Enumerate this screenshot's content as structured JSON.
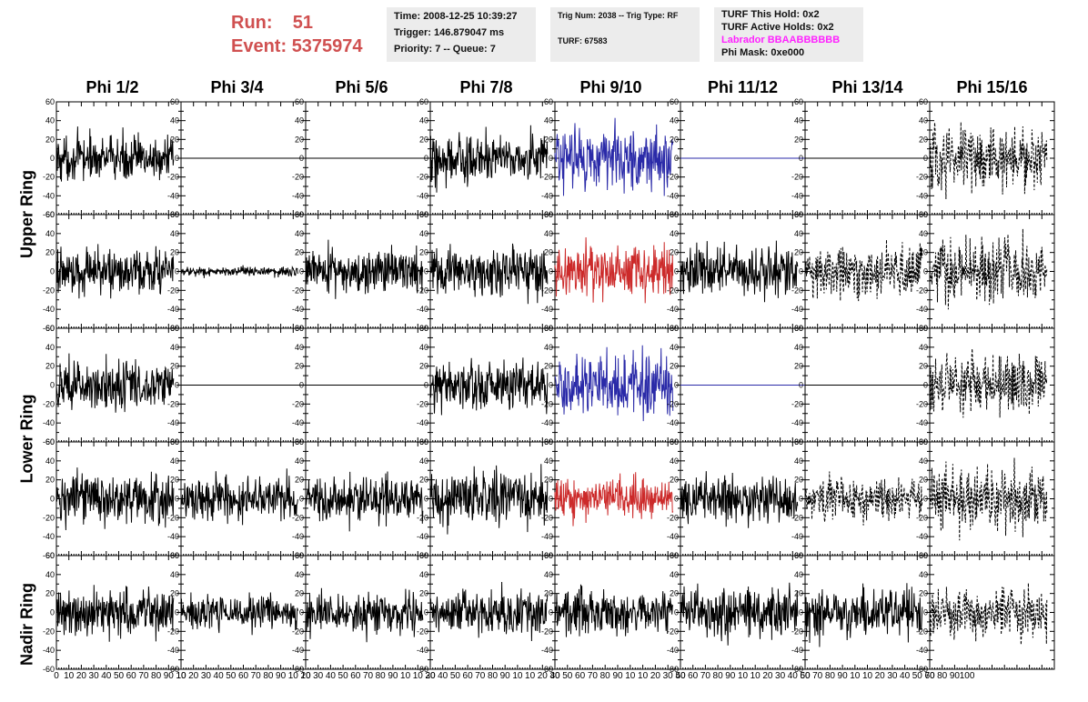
{
  "header": {
    "run_label": "Run:",
    "run_value": "51",
    "event_label": "Event:",
    "event_value": "5375974"
  },
  "info_boxes": {
    "time": "Time: 2008-12-25 10:39:27",
    "trigger": "Trigger: 146.879047 ms",
    "priority": "Priority: 7 -- Queue: 7",
    "trig_num": "Trig Num: 2038 -- Trig Type: RF",
    "turf": "TURF: 67583",
    "turf_hold": "TURF This Hold: 0x2",
    "turf_active": "TURF Active Holds: 0x2",
    "labrador": "Labrador BBAABBBBBB",
    "phi_mask": "Phi Mask: 0xe000"
  },
  "colors": {
    "header_run": "#d05050",
    "labrador": "#ff22ff",
    "trace_default": "#000000",
    "trace_highlight_upper": "#2a2aa8",
    "trace_highlight_lower": "#cc2a2a"
  },
  "chart_data": {
    "type": "line",
    "description_level": "grid of 5 x 8 waveform panels",
    "columns": [
      "Phi 1/2",
      "Phi 3/4",
      "Phi 5/6",
      "Phi 7/8",
      "Phi 9/10",
      "Phi 11/12",
      "Phi 13/14",
      "Phi 15/16"
    ],
    "row_labels": [
      "Upper Ring",
      "Lower Ring",
      "Nadir Ring"
    ],
    "ylim": [
      -60,
      60
    ],
    "xlim": [
      0,
      100
    ],
    "y_ticks": [
      "60",
      "40",
      "20",
      "0",
      "-20",
      "-40",
      "-60"
    ],
    "x_ticks": [
      "0",
      "10",
      "20",
      "30",
      "40",
      "50",
      "60",
      "70",
      "80",
      "90",
      "100"
    ],
    "x_tick_label_strings": [
      "0",
      "10",
      "20",
      "30",
      "40",
      "50",
      "60",
      "70",
      "80",
      "90",
      "10",
      "10",
      "20",
      "30",
      "40",
      "50",
      "60",
      "70",
      "80",
      "90",
      "10",
      "10",
      "20",
      "30",
      "40",
      "50",
      "60",
      "70",
      "80",
      "90",
      "10",
      "10",
      "20",
      "30",
      "40",
      "50",
      "60",
      "70",
      "80",
      "90",
      "10",
      "10",
      "20",
      "30",
      "40",
      "50",
      "60",
      "70",
      "80",
      "90",
      "10",
      "10",
      "20",
      "30",
      "40",
      "50",
      "60",
      "70",
      "80",
      "90",
      "10",
      "10",
      "20",
      "30",
      "40",
      "50",
      "60",
      "70",
      "80",
      "90",
      "10",
      "10",
      "20",
      "30",
      "40",
      "50",
      "60",
      "70",
      "80",
      "90",
      "100"
    ],
    "samples_per_trace": 260,
    "trace_x_range": [
      0,
      94
    ],
    "panels": [
      [
        {
          "amp": 18,
          "style": "solid",
          "color": "trace_default"
        },
        {
          "amp": 0,
          "style": "flat",
          "color": "trace_default"
        },
        {
          "amp": 0,
          "style": "flat",
          "color": "trace_default"
        },
        {
          "amp": 20,
          "style": "solid",
          "color": "trace_default"
        },
        {
          "amp": 26,
          "style": "solid",
          "color": "trace_highlight_upper"
        },
        {
          "amp": 0,
          "style": "flat",
          "color": "trace_highlight_upper"
        },
        {
          "amp": 0,
          "style": "flat",
          "color": "trace_default"
        },
        {
          "amp": 26,
          "style": "dashed",
          "color": "trace_default"
        }
      ],
      [
        {
          "amp": 18,
          "style": "solid",
          "color": "trace_default"
        },
        {
          "amp": 4,
          "style": "solid",
          "color": "trace_default"
        },
        {
          "amp": 18,
          "style": "solid",
          "color": "trace_default"
        },
        {
          "amp": 20,
          "style": "solid",
          "color": "trace_default"
        },
        {
          "amp": 22,
          "style": "solid",
          "color": "trace_highlight_lower"
        },
        {
          "amp": 20,
          "style": "solid",
          "color": "trace_default"
        },
        {
          "amp": 20,
          "style": "dashed",
          "color": "trace_default"
        },
        {
          "amp": 25,
          "style": "dashed",
          "color": "trace_default"
        }
      ],
      [
        {
          "amp": 20,
          "style": "solid",
          "color": "trace_default"
        },
        {
          "amp": 0,
          "style": "flat",
          "color": "trace_default"
        },
        {
          "amp": 0,
          "style": "flat",
          "color": "trace_default"
        },
        {
          "amp": 20,
          "style": "solid",
          "color": "trace_default"
        },
        {
          "amp": 25,
          "style": "solid",
          "color": "trace_highlight_upper"
        },
        {
          "amp": 0,
          "style": "flat",
          "color": "trace_highlight_upper"
        },
        {
          "amp": 0,
          "style": "flat",
          "color": "trace_default"
        },
        {
          "amp": 24,
          "style": "dashed",
          "color": "trace_default"
        }
      ],
      [
        {
          "amp": 20,
          "style": "solid",
          "color": "trace_default"
        },
        {
          "amp": 18,
          "style": "solid",
          "color": "trace_default"
        },
        {
          "amp": 18,
          "style": "solid",
          "color": "trace_default"
        },
        {
          "amp": 22,
          "style": "solid",
          "color": "trace_default"
        },
        {
          "amp": 15,
          "style": "solid",
          "color": "trace_highlight_lower"
        },
        {
          "amp": 18,
          "style": "solid",
          "color": "trace_default"
        },
        {
          "amp": 16,
          "style": "dashed",
          "color": "trace_default"
        },
        {
          "amp": 25,
          "style": "dashed",
          "color": "trace_default"
        }
      ],
      [
        {
          "amp": 20,
          "style": "solid",
          "color": "trace_default"
        },
        {
          "amp": 14,
          "style": "solid",
          "color": "trace_default"
        },
        {
          "amp": 16,
          "style": "solid",
          "color": "trace_default"
        },
        {
          "amp": 18,
          "style": "solid",
          "color": "trace_default"
        },
        {
          "amp": 18,
          "style": "solid",
          "color": "trace_default"
        },
        {
          "amp": 20,
          "style": "solid",
          "color": "trace_default"
        },
        {
          "amp": 22,
          "style": "solid",
          "color": "trace_default"
        },
        {
          "amp": 20,
          "style": "dashed",
          "color": "trace_default"
        }
      ]
    ]
  }
}
